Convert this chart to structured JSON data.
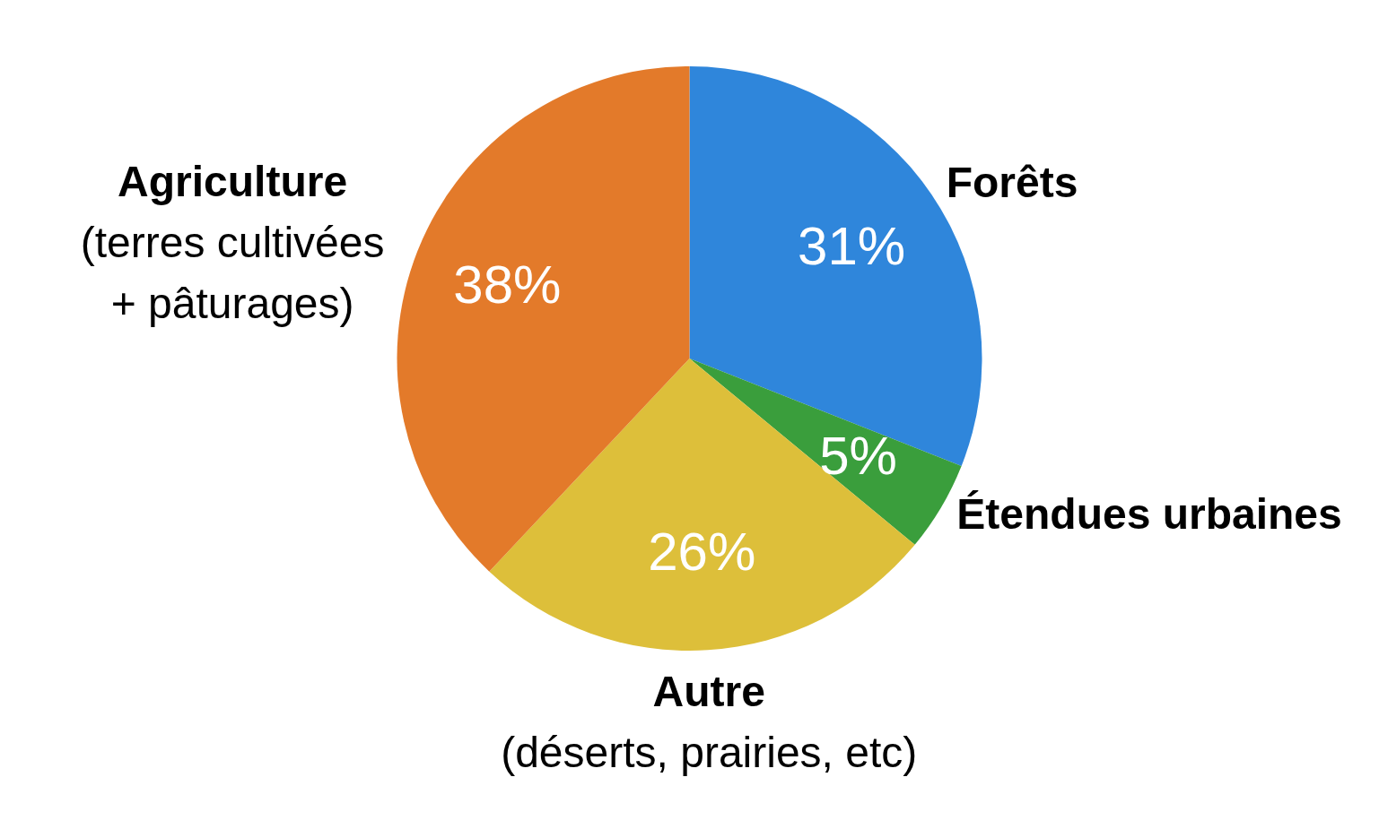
{
  "chart_data": {
    "type": "pie",
    "categories": [
      "Forêts",
      "Étendues urbaines",
      "Autre\n(déserts, prairies, etc)",
      "Agriculture\n(terres cultivées\n+ pâturages)"
    ],
    "values": [
      31,
      5,
      26,
      38
    ],
    "colors": [
      "#2f86db",
      "#3a9e3c",
      "#ddbf3a",
      "#e37a2a"
    ],
    "value_labels": [
      "31%",
      "5%",
      "26%",
      "38%"
    ]
  }
}
